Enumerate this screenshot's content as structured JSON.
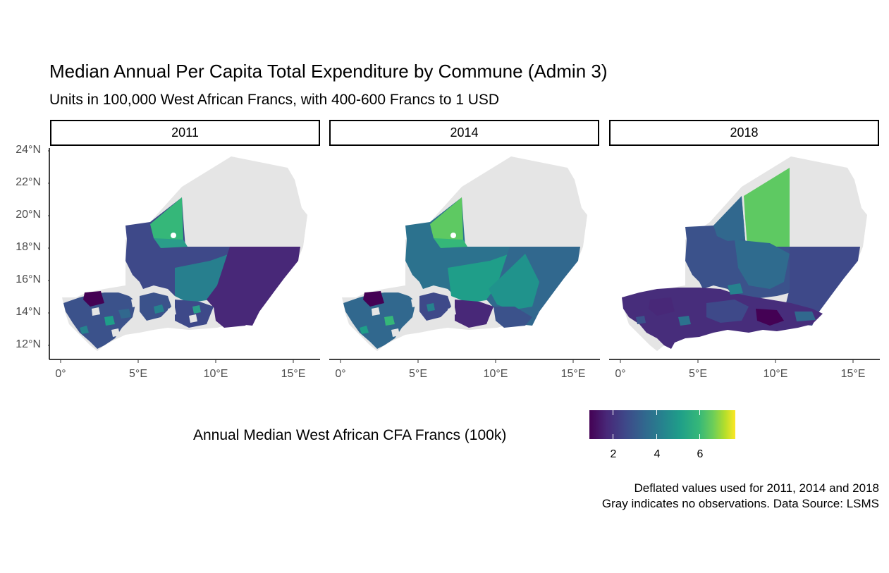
{
  "title": "Median Annual Per Capita Total Expenditure by Commune (Admin 3)",
  "subtitle": "Units in 100,000 West African Francs, with 400-600 Francs to 1 USD",
  "facets": [
    "2011",
    "2014",
    "2018"
  ],
  "y_ticks": [
    "24°N",
    "22°N",
    "20°N",
    "18°N",
    "16°N",
    "14°N",
    "12°N"
  ],
  "x_ticks": [
    "0°",
    "5°E",
    "10°E",
    "15°E"
  ],
  "legend": {
    "title": "Annual Median West African CFA Francs (100k)",
    "labels": [
      "2",
      "4",
      "6"
    ],
    "scale": "viridis"
  },
  "caption": {
    "line1": "Deflated values used for 2011, 2014 and 2018",
    "line2": "Gray indicates no observations. Data Source: LSMS"
  },
  "colors": {
    "no_data": "#e5e5e5",
    "low": "#440154",
    "high": "#fde725"
  }
}
